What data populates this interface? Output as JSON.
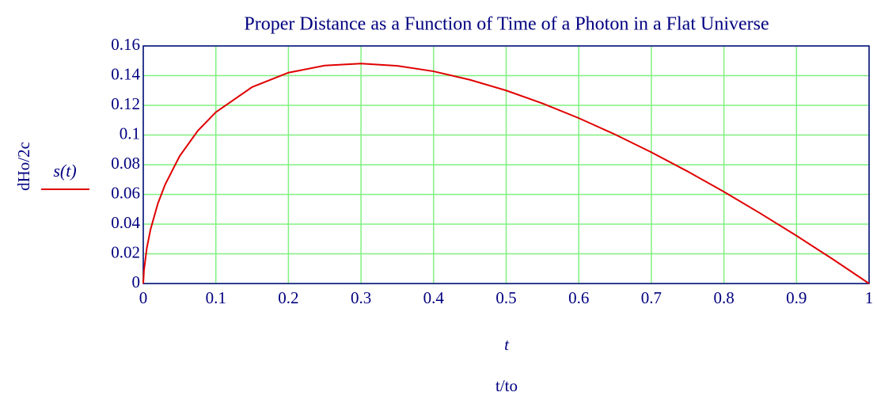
{
  "chart_data": {
    "type": "line",
    "title": "Proper Distance as a Function of Time of a Photon in a Flat Universe",
    "x_axis_expression": "t",
    "x_label": "t/to",
    "y_label": "dHo/2c",
    "x": [
      0,
      0.001,
      0.005,
      0.01,
      0.02,
      0.03,
      0.05,
      0.075,
      0.1,
      0.15,
      0.2,
      0.25,
      0.3,
      0.35,
      0.4,
      0.45,
      0.5,
      0.55,
      0.6,
      0.65,
      0.7,
      0.75,
      0.8,
      0.85,
      0.9,
      0.95,
      1
    ],
    "series": [
      {
        "name": "s(t)",
        "color": "#e00000",
        "values": [
          0,
          0.009,
          0.0242,
          0.0364,
          0.0537,
          0.0665,
          0.0857,
          0.1028,
          0.1154,
          0.1323,
          0.142,
          0.1468,
          0.1481,
          0.1466,
          0.1429,
          0.1372,
          0.13,
          0.1213,
          0.1114,
          0.1004,
          0.0884,
          0.0755,
          0.0618,
          0.0473,
          0.0322,
          0.0164,
          0
        ]
      }
    ],
    "xlim": [
      0,
      1
    ],
    "xticks": [
      0,
      0.1,
      0.2,
      0.3,
      0.4,
      0.5,
      0.6,
      0.7,
      0.8,
      0.9,
      1
    ],
    "ylim": [
      0,
      0.16
    ],
    "yticks": [
      0,
      0.02,
      0.04,
      0.06,
      0.08,
      0.1,
      0.12,
      0.14,
      0.16
    ],
    "grid": true,
    "grid_color": "#80f080",
    "axis_color": "#000080"
  }
}
